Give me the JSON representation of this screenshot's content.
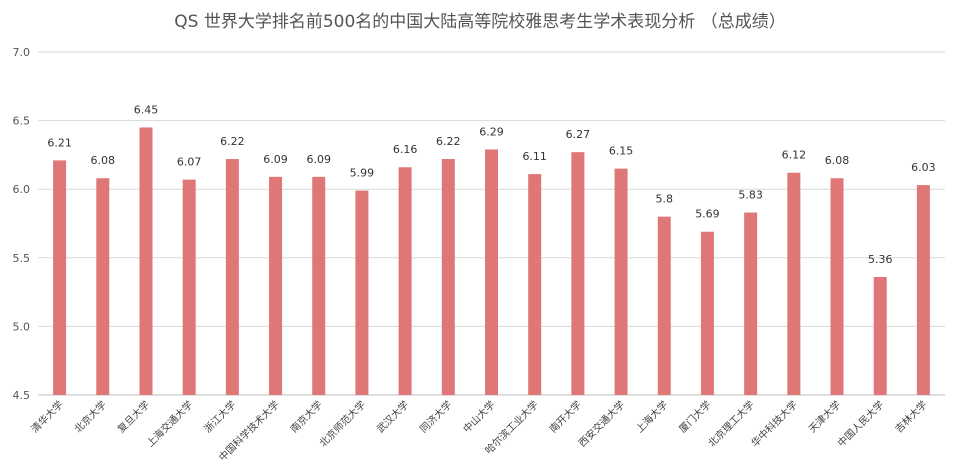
{
  "chart_data": {
    "type": "bar",
    "title": "QS 世界大学排名前500名的中国大陆高等院校雅思考生学术表现分析 （总成绩）",
    "xlabel": "",
    "ylabel": "",
    "ylim": [
      4.5,
      7.0
    ],
    "yticks": [
      "4.5",
      "5.0",
      "5.5",
      "6.0",
      "6.5",
      "7.0"
    ],
    "grid": true,
    "legend": "none",
    "bar_color": "#e07777",
    "categories": [
      "清华大学",
      "北京大学",
      "复旦大学",
      "上海交通大学",
      "浙江大学",
      "中国科学技术大学",
      "南京大学",
      "北京师范大学",
      "武汉大学",
      "同济大学",
      "中山大学",
      "哈尔滨工业大学",
      "南开大学",
      "西安交通大学",
      "上海大学",
      "厦门大学",
      "北京理工大学",
      "华中科技大学",
      "天津大学",
      "中国人民大学",
      "吉林大学"
    ],
    "values": [
      6.21,
      6.08,
      6.45,
      6.07,
      6.22,
      6.09,
      6.09,
      5.99,
      6.16,
      6.22,
      6.29,
      6.11,
      6.27,
      6.15,
      5.8,
      5.69,
      5.83,
      6.12,
      6.08,
      5.36,
      6.03
    ],
    "value_labels": [
      "6.21",
      "6.08",
      "6.45",
      "6.07",
      "6.22",
      "6.09",
      "6.09",
      "5.99",
      "6.16",
      "6.22",
      "6.29",
      "6.11",
      "6.27",
      "6.15",
      "5.8",
      "5.69",
      "5.83",
      "6.12",
      "6.08",
      "5.36",
      "6.03"
    ]
  }
}
